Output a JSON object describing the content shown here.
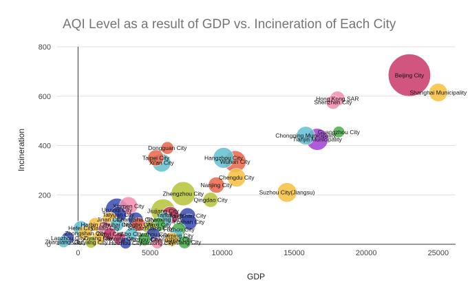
{
  "chart_data": {
    "type": "scatter",
    "title": "AQI Level as a result of GDP vs. Incineration of Each City",
    "xlabel": "GDP",
    "ylabel": "Incineration",
    "xlim": [
      -1500,
      26200
    ],
    "ylim": [
      0,
      800
    ],
    "x_ticks": [
      0,
      5000,
      10000,
      15000,
      20000,
      25000
    ],
    "y_ticks": [
      0,
      200,
      400,
      600,
      800
    ],
    "grid": "horizontal",
    "legend": "none",
    "points": [
      {
        "label": "Beijing City",
        "x": 23000,
        "y": 685,
        "size": 3.7,
        "color": "#c93f6e"
      },
      {
        "label": "Shanghai Municipality",
        "x": 25000,
        "y": 615,
        "size": 1.6,
        "color": "#f6c244"
      },
      {
        "label": "Hong Kong SAR",
        "x": 18000,
        "y": 590,
        "size": 1.3,
        "color": "#f48fb1"
      },
      {
        "label": "Shenzhen City",
        "x": 17700,
        "y": 575,
        "size": 1.2,
        "color": "#f48fb1"
      },
      {
        "label": "Guangzhou City",
        "x": 18100,
        "y": 455,
        "size": 1.0,
        "color": "#4cb050"
      },
      {
        "label": "Chongqing Municipality",
        "x": 15800,
        "y": 440,
        "size": 1.6,
        "color": "#67c1d0"
      },
      {
        "label": "Tianjin Municipality",
        "x": 16600,
        "y": 425,
        "size": 1.9,
        "color": "#a345d1"
      },
      {
        "label": "Dongguan City",
        "x": 6200,
        "y": 390,
        "size": 1.1,
        "color": "#ea6a4e"
      },
      {
        "label": "Taipei City",
        "x": 5400,
        "y": 350,
        "size": 1.4,
        "color": "#ea6a4e"
      },
      {
        "label": "Xi'an City",
        "x": 5800,
        "y": 330,
        "size": 1.6,
        "color": "#67c1d0"
      },
      {
        "label": "Hangzhou City",
        "x": 10100,
        "y": 350,
        "size": 1.8,
        "color": "#67c1d0"
      },
      {
        "label": "Wuhan City",
        "x": 10900,
        "y": 335,
        "size": 1.9,
        "color": "#ea6a4e"
      },
      {
        "label": "Chengdu City",
        "x": 11000,
        "y": 270,
        "size": 1.6,
        "color": "#f6c244"
      },
      {
        "label": "Nanjing City",
        "x": 9600,
        "y": 240,
        "size": 1.4,
        "color": "#ea6a4e"
      },
      {
        "label": "Suzhou City(Jiangsu)",
        "x": 14500,
        "y": 210,
        "size": 1.7,
        "color": "#f6c244"
      },
      {
        "label": "Zhengzhou City",
        "x": 7300,
        "y": 205,
        "size": 2.1,
        "color": "#b7c53e"
      },
      {
        "label": "Qingdao City",
        "x": 9200,
        "y": 180,
        "size": 1.3,
        "color": "#b7c53e"
      },
      {
        "label": "Xiamen City",
        "x": 3500,
        "y": 155,
        "size": 1.6,
        "color": "#f48fb1"
      },
      {
        "label": "Urumqi City",
        "x": 2700,
        "y": 140,
        "size": 2.0,
        "color": "#3f51b5"
      },
      {
        "label": "Jiujiang City",
        "x": 5900,
        "y": 135,
        "size": 2.1,
        "color": "#b7c53e"
      },
      {
        "label": "Taiyuan City",
        "x": 2800,
        "y": 120,
        "size": 1.4,
        "color": "#3f51b5"
      },
      {
        "label": "Yantai City",
        "x": 6400,
        "y": 118,
        "size": 1.5,
        "color": "#c93f6e"
      },
      {
        "label": "Tangshan City",
        "x": 7600,
        "y": 115,
        "size": 1.4,
        "color": "#3f51b5"
      },
      {
        "label": "Jinan City",
        "x": 2200,
        "y": 100,
        "size": 1.3,
        "color": "#f6c244"
      },
      {
        "label": "Changsha City",
        "x": 4000,
        "y": 100,
        "size": 1.3,
        "color": "#3f51b5"
      },
      {
        "label": "Shaoxing City",
        "x": 6000,
        "y": 100,
        "size": 1.3,
        "color": "#67c1d0"
      },
      {
        "label": "Foshan City",
        "x": 7700,
        "y": 90,
        "size": 1.4,
        "color": "#3f51b5"
      },
      {
        "label": "Harbin City",
        "x": 1200,
        "y": 80,
        "size": 1.2,
        "color": "#f6c244"
      },
      {
        "label": "Zhuhai City",
        "x": 2700,
        "y": 80,
        "size": 1.2,
        "color": "#67c1d0"
      },
      {
        "label": "Ningbo City",
        "x": 4200,
        "y": 80,
        "size": 1.2,
        "color": "#ea6a4e"
      },
      {
        "label": "Wuxi City",
        "x": 5600,
        "y": 80,
        "size": 1.2,
        "color": "#4cb050"
      },
      {
        "label": "Hefei City",
        "x": 200,
        "y": 65,
        "size": 1.3,
        "color": "#67c1d0"
      },
      {
        "label": "Dalian City",
        "x": 1900,
        "y": 65,
        "size": 1.2,
        "color": "#f48fb1"
      },
      {
        "label": "Shijiazhuang City",
        "x": 5000,
        "y": 65,
        "size": 1.2,
        "color": "#b7c53e"
      },
      {
        "label": "Fuzhou City",
        "x": 7000,
        "y": 60,
        "size": 1.2,
        "color": "#4cb050"
      },
      {
        "label": "Zhongshan City",
        "x": 500,
        "y": 45,
        "size": 1.2,
        "color": "#f6c244"
      },
      {
        "label": "Zunyi City",
        "x": 2200,
        "y": 42,
        "size": 1.1,
        "color": "#c93f6e"
      },
      {
        "label": "Zibo City",
        "x": 3700,
        "y": 42,
        "size": 1.1,
        "color": "#67c1d0"
      },
      {
        "label": "Liuzhou City",
        "x": 5200,
        "y": 40,
        "size": 1.2,
        "color": "#3f51b5"
      },
      {
        "label": "Kunming City",
        "x": 6800,
        "y": 35,
        "size": 1.2,
        "color": "#67c1d0"
      },
      {
        "label": "Lanzhou City",
        "x": -700,
        "y": 25,
        "size": 1.1,
        "color": "#3f51b5"
      },
      {
        "label": "Ziyang City",
        "x": 1400,
        "y": 25,
        "size": 1.1,
        "color": "#f6c244"
      },
      {
        "label": "Nanning City",
        "x": 2900,
        "y": 22,
        "size": 1.1,
        "color": "#c93f6e"
      },
      {
        "label": "Xuzhou City",
        "x": 4600,
        "y": 20,
        "size": 1.1,
        "color": "#4cb050"
      },
      {
        "label": "Changzhou City",
        "x": 6500,
        "y": 20,
        "size": 1.2,
        "color": "#f6c244"
      },
      {
        "label": "Zhanjiang City",
        "x": -1000,
        "y": 10,
        "size": 1.0,
        "color": "#67c1d0"
      },
      {
        "label": "Guiyang City",
        "x": 900,
        "y": 8,
        "size": 1.0,
        "color": "#b7c53e"
      },
      {
        "label": "Huizhou City",
        "x": 3300,
        "y": 5,
        "size": 1.0,
        "color": "#3f51b5"
      },
      {
        "label": "Nantong City",
        "x": 5500,
        "y": 5,
        "size": 1.0,
        "color": "#f48fb1"
      },
      {
        "label": "Weifang City",
        "x": 7400,
        "y": 8,
        "size": 1.1,
        "color": "#4cb050"
      }
    ]
  }
}
